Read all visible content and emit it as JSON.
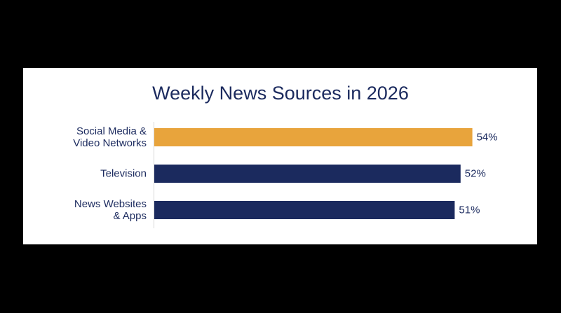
{
  "chart_data": {
    "type": "barh",
    "title": "Weekly News Sources in 2026",
    "categories": [
      "Social Media &\nVideo Networks",
      "Television",
      "News Websites\n& Apps"
    ],
    "values": [
      54,
      52,
      51
    ],
    "value_labels": [
      "54%",
      "52%",
      "51%"
    ],
    "colors": [
      "#e8a43c",
      "#1b2a5e",
      "#1b2a5e"
    ]
  }
}
